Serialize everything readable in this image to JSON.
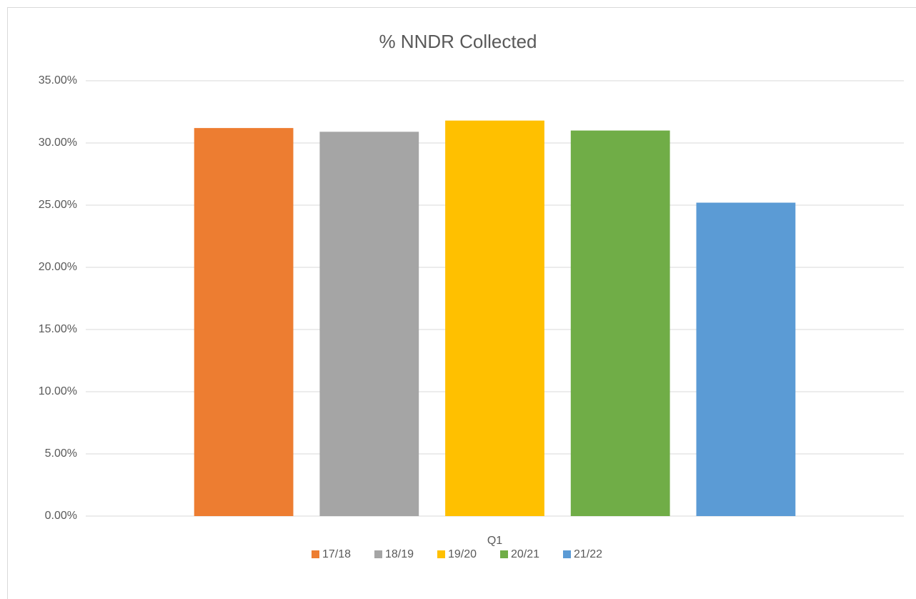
{
  "chart_data": {
    "type": "bar",
    "title": "% NNDR Collected",
    "categories": [
      "Q1"
    ],
    "series": [
      {
        "name": "17/18",
        "color": "#ed7d31",
        "values": [
          31.2
        ]
      },
      {
        "name": "18/19",
        "color": "#a5a5a5",
        "values": [
          30.9
        ]
      },
      {
        "name": "19/20",
        "color": "#ffc000",
        "values": [
          31.8
        ]
      },
      {
        "name": "20/21",
        "color": "#70ad47",
        "values": [
          31.0
        ]
      },
      {
        "name": "21/22",
        "color": "#5b9bd5",
        "values": [
          25.2
        ]
      }
    ],
    "ylim": [
      0,
      35
    ],
    "yticks": [
      {
        "value": 0,
        "label": "0.00%"
      },
      {
        "value": 5,
        "label": "5.00%"
      },
      {
        "value": 10,
        "label": "10.00%"
      },
      {
        "value": 15,
        "label": "15.00%"
      },
      {
        "value": 20,
        "label": "20.00%"
      },
      {
        "value": 25,
        "label": "25.00%"
      },
      {
        "value": 30,
        "label": "30.00%"
      },
      {
        "value": 35,
        "label": "35.00%"
      }
    ],
    "grid": true,
    "legend": "bottom"
  }
}
